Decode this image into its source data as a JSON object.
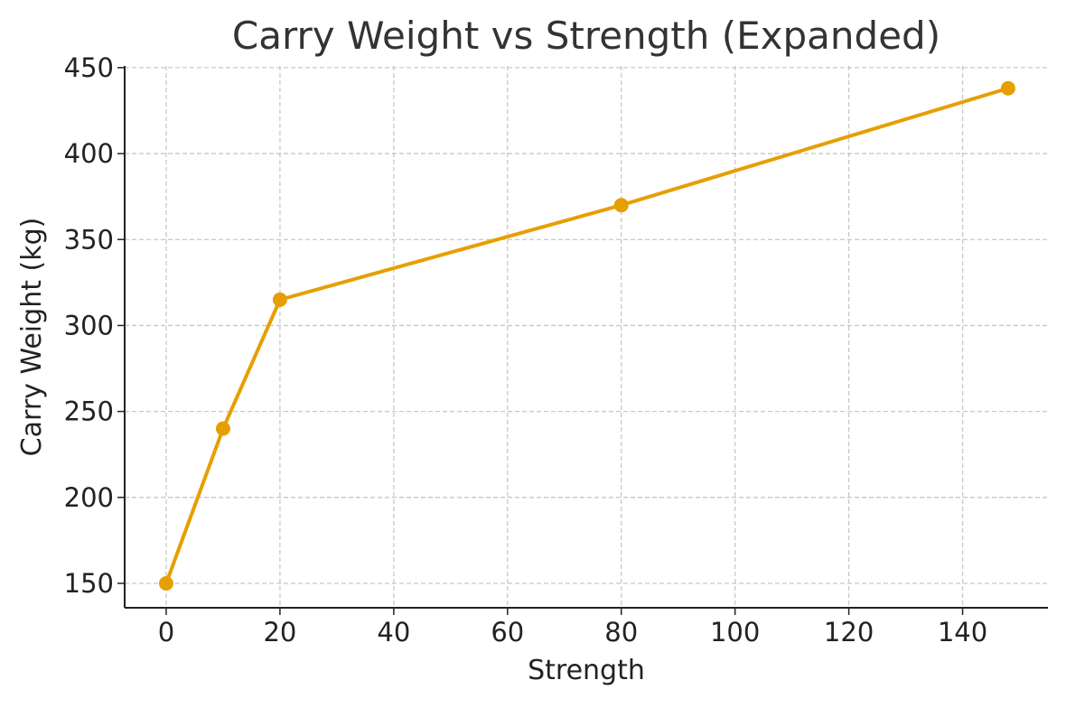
{
  "chart_data": {
    "type": "line",
    "title": "Carry Weight vs Strength (Expanded)",
    "xlabel": "Strength",
    "ylabel": "Carry Weight (kg)",
    "x": [
      0,
      10,
      20,
      80,
      148
    ],
    "series": [
      {
        "values": [
          150,
          240,
          315,
          370,
          438
        ],
        "color": "#E69F00",
        "marker": "circle"
      }
    ],
    "xlim": [
      -7.3,
      155
    ],
    "ylim": [
      135.8,
      451
    ],
    "xticks": [
      0,
      20,
      40,
      60,
      80,
      100,
      120,
      140
    ],
    "yticks": [
      150,
      200,
      250,
      300,
      350,
      400,
      450
    ],
    "grid": true,
    "grid_style": "dashed"
  }
}
